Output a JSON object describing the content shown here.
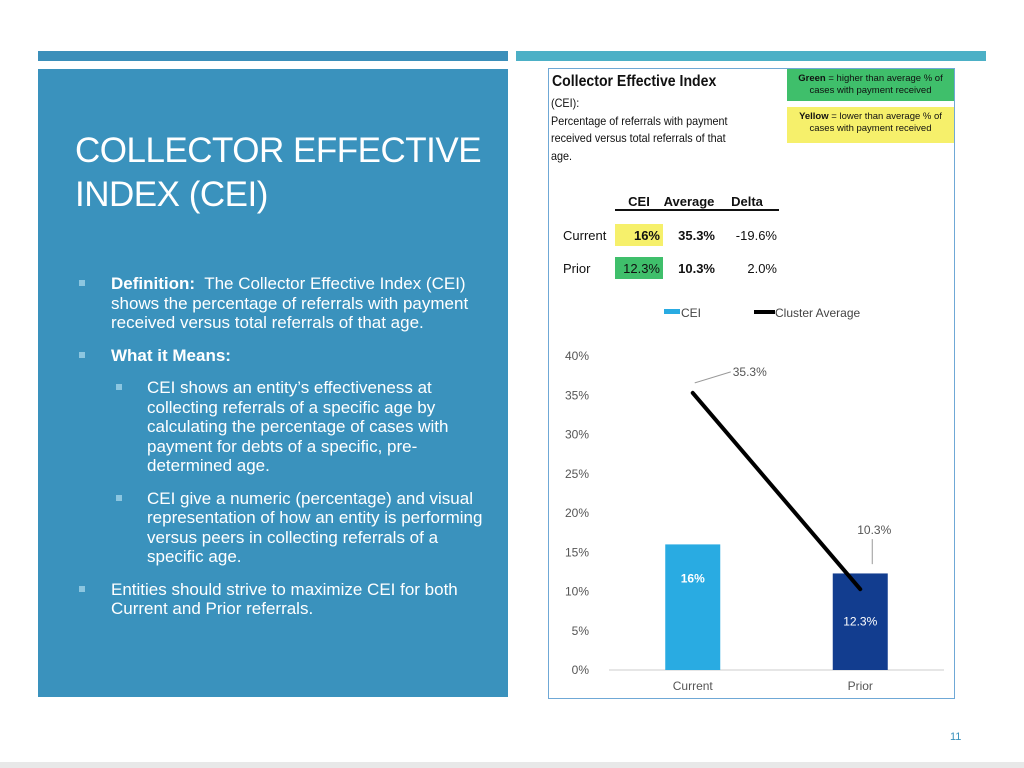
{
  "slide": {
    "title_line1": "COLLECTOR EFFECTIVE",
    "title_line2": "INDEX (CEI)",
    "page_number": "11"
  },
  "bullets": {
    "definition_label": "Definition:",
    "definition_text": "The Collector Effective Index (CEI) shows the percentage of referrals with payment received versus total referrals of that age.",
    "meaning_label": "What it Means:",
    "meaning_sub1": "CEI shows an entity’s effectiveness at collecting referrals of a specific age by calculating the percentage of cases with payment for debts of a specific, pre-determined age.",
    "meaning_sub2": "CEI give a numeric (percentage) and visual representation of how an entity is performing versus peers in collecting referrals of a specific age.",
    "closing": "Entities should strive to maximize CEI for both Current and Prior referrals."
  },
  "panel": {
    "heading": "Collector Effective Index",
    "desc_line1": "(CEI):",
    "desc_line2": "Percentage of referrals with payment",
    "desc_line3": "received versus total referrals of that",
    "desc_line4": "age.",
    "legend_green_bold": "Green",
    "legend_green_line1": " = higher than average % of",
    "legend_green_line2": "cases with payment received",
    "legend_yellow_bold": "Yellow",
    "legend_yellow_line1": " = lower than average % of",
    "legend_yellow_line2": "cases with payment received"
  },
  "table": {
    "headers": [
      "CEI",
      "Average",
      "Delta"
    ],
    "rows": [
      {
        "label": "Current",
        "cei": "16%",
        "average": "35.3%",
        "delta": "-19.6%",
        "highlight": "#f6f06b"
      },
      {
        "label": "Prior",
        "cei": "12.3%",
        "average": "10.3%",
        "delta": "2.0%",
        "highlight": "#3fbf6b"
      }
    ]
  },
  "colors": {
    "slide_blue": "#3a92bd",
    "cei_current": "#29abe2",
    "cei_prior": "#123d8f",
    "average_line": "#000000"
  },
  "chart_data": {
    "type": "bar",
    "categories": [
      "Current",
      "Prior"
    ],
    "series": [
      {
        "name": "CEI",
        "type": "bar",
        "values": [
          16,
          12.3
        ],
        "labels": [
          "16%",
          "12.3%"
        ]
      },
      {
        "name": "Cluster Average",
        "type": "line",
        "values": [
          35.3,
          10.3
        ],
        "labels": [
          "35.3%",
          "10.3%"
        ]
      }
    ],
    "ylim": [
      0,
      40
    ],
    "yticks": [
      "0%",
      "5%",
      "10%",
      "15%",
      "20%",
      "25%",
      "30%",
      "35%",
      "40%"
    ],
    "ytick_values": [
      0,
      5,
      10,
      15,
      20,
      25,
      30,
      35,
      40
    ],
    "legend": "top",
    "grid": false
  }
}
